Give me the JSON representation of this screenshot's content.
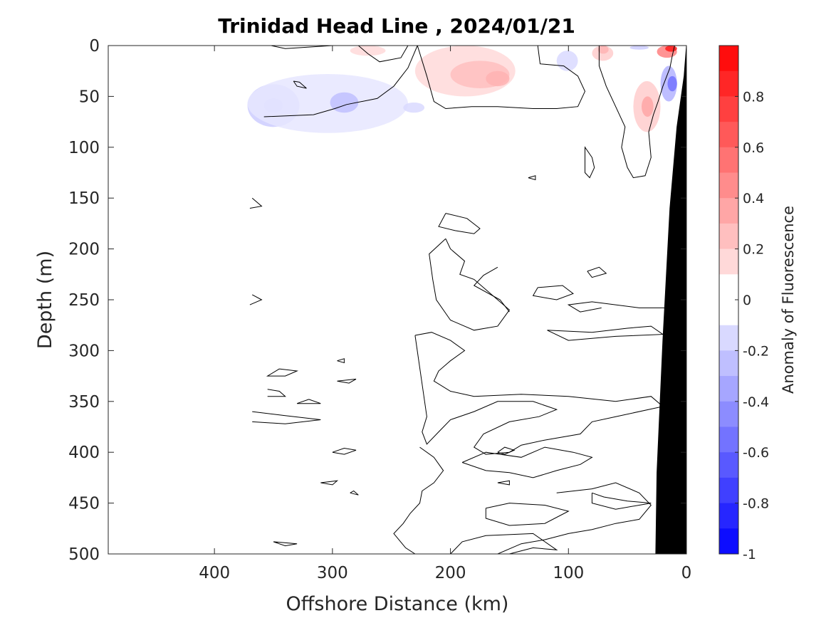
{
  "chart_data": {
    "type": "heatmap",
    "title": "Trinidad Head Line , 2024/01/21",
    "xlabel": "Offshore Distance (km)",
    "ylabel": "Depth (m)",
    "xlim": [
      490,
      0
    ],
    "ylim": [
      0,
      500
    ],
    "x_reversed": true,
    "y_reversed": true,
    "x_ticks": [
      400,
      300,
      200,
      100,
      0
    ],
    "x_tick_labels": [
      "400",
      "300",
      "200",
      "100",
      "0"
    ],
    "y_ticks": [
      0,
      50,
      100,
      150,
      200,
      250,
      300,
      350,
      400,
      450,
      500
    ],
    "y_tick_labels": [
      "0",
      "50",
      "100",
      "150",
      "200",
      "250",
      "300",
      "350",
      "400",
      "450",
      "500"
    ],
    "colorbar": {
      "label": "Anomaly of Fluorescence",
      "min": -1,
      "max": 1,
      "step": 0.1,
      "ticks": [
        0.8,
        0.6,
        0.4,
        0.2,
        0,
        -0.2,
        -0.4,
        -0.6,
        -0.8,
        -1
      ],
      "tick_labels": [
        "0.8",
        "0.6",
        "0.4",
        "0.2",
        "0",
        "-0.2",
        "-0.4",
        "-0.6",
        "-0.8",
        "-1"
      ],
      "color_min": "#0000ff",
      "color_zero": "#ffffff",
      "color_max": "#ff0000"
    },
    "data_extent": {
      "x_min_km": 0,
      "x_max_km": 370,
      "max_depth_offshore_m": 85,
      "note_free": true
    },
    "anomaly_regions": [
      {
        "dist": [
          358,
          342
        ],
        "depth": [
          52,
          66
        ],
        "value": -0.4
      },
      {
        "dist": [
          372,
          328
        ],
        "depth": [
          38,
          80
        ],
        "value": -0.2
      },
      {
        "dist": [
          372,
          236
        ],
        "depth": [
          28,
          86
        ],
        "value": -0.1
      },
      {
        "dist": [
          302,
          278
        ],
        "depth": [
          46,
          66
        ],
        "value": -0.25
      },
      {
        "dist": [
          240,
          222
        ],
        "depth": [
          56,
          66
        ],
        "value": -0.15
      },
      {
        "dist": [
          285,
          255
        ],
        "depth": [
          0,
          10
        ],
        "value": 0.15
      },
      {
        "dist": [
          230,
          145
        ],
        "depth": [
          0,
          50
        ],
        "value": 0.15
      },
      {
        "dist": [
          200,
          150
        ],
        "depth": [
          15,
          42
        ],
        "value": 0.25
      },
      {
        "dist": [
          170,
          150
        ],
        "depth": [
          25,
          40
        ],
        "value": 0.3
      },
      {
        "dist": [
          110,
          92
        ],
        "depth": [
          5,
          25
        ],
        "value": -0.15
      },
      {
        "dist": [
          80,
          62
        ],
        "depth": [
          0,
          15
        ],
        "value": 0.2
      },
      {
        "dist": [
          75,
          66
        ],
        "depth": [
          0,
          8
        ],
        "value": 0.3
      },
      {
        "dist": [
          48,
          32
        ],
        "depth": [
          0,
          4
        ],
        "value": -0.2
      },
      {
        "dist": [
          45,
          22
        ],
        "depth": [
          35,
          85
        ],
        "value": 0.2
      },
      {
        "dist": [
          38,
          28
        ],
        "depth": [
          50,
          70
        ],
        "value": 0.35
      },
      {
        "dist": [
          25,
          8
        ],
        "depth": [
          0,
          12
        ],
        "value": 0.5
      },
      {
        "dist": [
          18,
          8
        ],
        "depth": [
          0,
          6
        ],
        "value": 0.9
      },
      {
        "dist": [
          22,
          8
        ],
        "depth": [
          20,
          55
        ],
        "value": -0.3
      },
      {
        "dist": [
          16,
          8
        ],
        "depth": [
          30,
          45
        ],
        "value": -0.55
      }
    ],
    "bathymetry": [
      {
        "dist": 0,
        "depth": 0
      },
      {
        "dist": 2,
        "depth": 30
      },
      {
        "dist": 8,
        "depth": 80
      },
      {
        "dist": 14,
        "depth": 160
      },
      {
        "dist": 20,
        "depth": 290
      },
      {
        "dist": 25,
        "depth": 420
      },
      {
        "dist": 26,
        "depth": 500
      }
    ],
    "zero_contours": [
      [
        [
          300,
          0
        ],
        [
          340,
          3
        ],
        [
          352,
          0
        ]
      ],
      [
        [
          236,
          0
        ],
        [
          242,
          12
        ],
        [
          260,
          16
        ],
        [
          270,
          8
        ],
        [
          278,
          0
        ]
      ],
      [
        [
          228,
          0
        ],
        [
          236,
          22
        ],
        [
          248,
          40
        ],
        [
          262,
          52
        ],
        [
          288,
          58
        ],
        [
          298,
          62
        ],
        [
          316,
          68
        ],
        [
          358,
          70
        ]
      ],
      [
        [
          228,
          0
        ],
        [
          220,
          30
        ],
        [
          214,
          55
        ],
        [
          204,
          62
        ],
        [
          182,
          60
        ],
        [
          160,
          60
        ],
        [
          130,
          62
        ],
        [
          110,
          62
        ],
        [
          92,
          60
        ],
        [
          86,
          45
        ],
        [
          92,
          30
        ],
        [
          104,
          20
        ],
        [
          124,
          18
        ],
        [
          126,
          0
        ]
      ],
      [
        [
          74,
          0
        ],
        [
          74,
          20
        ],
        [
          68,
          40
        ],
        [
          60,
          60
        ],
        [
          52,
          80
        ],
        [
          55,
          100
        ],
        [
          50,
          120
        ],
        [
          45,
          130
        ],
        [
          35,
          128
        ],
        [
          30,
          110
        ],
        [
          32,
          85
        ],
        [
          28,
          68
        ],
        [
          24,
          55
        ],
        [
          20,
          40
        ],
        [
          14,
          22
        ],
        [
          12,
          10
        ],
        [
          10,
          0
        ]
      ],
      [
        [
          80,
          110
        ],
        [
          86,
          100
        ],
        [
          86,
          125
        ],
        [
          82,
          130
        ],
        [
          78,
          120
        ],
        [
          80,
          110
        ]
      ],
      [
        [
          333,
          35
        ],
        [
          330,
          40
        ],
        [
          322,
          42
        ],
        [
          328,
          36
        ],
        [
          333,
          35
        ]
      ],
      [
        [
          368,
          150
        ],
        [
          360,
          158
        ],
        [
          370,
          160
        ]
      ],
      [
        [
          368,
          245
        ],
        [
          360,
          250
        ],
        [
          370,
          255
        ]
      ],
      [
        [
          204,
          165
        ],
        [
          186,
          170
        ],
        [
          175,
          180
        ],
        [
          180,
          185
        ],
        [
          196,
          182
        ],
        [
          210,
          178
        ],
        [
          204,
          165
        ]
      ],
      [
        [
          204,
          190
        ],
        [
          218,
          205
        ],
        [
          215,
          230
        ],
        [
          212,
          250
        ],
        [
          200,
          270
        ],
        [
          180,
          280
        ],
        [
          160,
          276
        ],
        [
          150,
          260
        ],
        [
          170,
          240
        ],
        [
          180,
          230
        ],
        [
          192,
          225
        ],
        [
          188,
          212
        ],
        [
          200,
          200
        ],
        [
          204,
          190
        ]
      ],
      [
        [
          150,
          262
        ],
        [
          158,
          250
        ],
        [
          180,
          236
        ],
        [
          172,
          226
        ],
        [
          160,
          218
        ]
      ],
      [
        [
          126,
          238
        ],
        [
          105,
          236
        ],
        [
          96,
          244
        ],
        [
          110,
          250
        ],
        [
          130,
          246
        ],
        [
          126,
          238
        ]
      ],
      [
        [
          84,
          222
        ],
        [
          74,
          218
        ],
        [
          68,
          224
        ],
        [
          80,
          228
        ],
        [
          84,
          222
        ]
      ],
      [
        [
          72,
          258
        ],
        [
          90,
          262
        ],
        [
          100,
          255
        ],
        [
          80,
          252
        ],
        [
          40,
          258
        ],
        [
          2,
          258
        ]
      ],
      [
        [
          118,
          280
        ],
        [
          80,
          282
        ],
        [
          50,
          278
        ],
        [
          30,
          276
        ],
        [
          20,
          284
        ],
        [
          60,
          286
        ],
        [
          100,
          290
        ],
        [
          118,
          280
        ]
      ],
      [
        [
          230,
          285
        ],
        [
          216,
          282
        ],
        [
          200,
          290
        ],
        [
          188,
          300
        ],
        [
          200,
          310
        ],
        [
          210,
          320
        ],
        [
          214,
          330
        ],
        [
          200,
          340
        ],
        [
          180,
          345
        ],
        [
          140,
          343
        ],
        [
          100,
          345
        ],
        [
          60,
          350
        ],
        [
          30,
          345
        ],
        [
          20,
          355
        ],
        [
          60,
          365
        ],
        [
          80,
          370
        ],
        [
          90,
          382
        ],
        [
          120,
          388
        ],
        [
          140,
          393
        ],
        [
          150,
          400
        ],
        [
          170,
          402
        ],
        [
          180,
          395
        ],
        [
          172,
          382
        ],
        [
          150,
          370
        ],
        [
          125,
          365
        ],
        [
          110,
          358
        ],
        [
          130,
          350
        ],
        [
          160,
          350
        ],
        [
          180,
          360
        ],
        [
          200,
          368
        ],
        [
          210,
          380
        ],
        [
          220,
          392
        ],
        [
          224,
          380
        ],
        [
          220,
          365
        ],
        [
          230,
          285
        ]
      ],
      [
        [
          226,
          395
        ],
        [
          214,
          405
        ],
        [
          206,
          418
        ],
        [
          214,
          430
        ],
        [
          224,
          438
        ],
        [
          226,
          450
        ],
        [
          234,
          460
        ],
        [
          240,
          470
        ],
        [
          248,
          480
        ],
        [
          238,
          494
        ],
        [
          230,
          500
        ]
      ],
      [
        [
          190,
          410
        ],
        [
          170,
          418
        ],
        [
          150,
          420
        ],
        [
          130,
          425
        ],
        [
          110,
          418
        ],
        [
          90,
          412
        ],
        [
          80,
          405
        ],
        [
          96,
          400
        ],
        [
          120,
          395
        ],
        [
          140,
          405
        ],
        [
          170,
          400
        ],
        [
          190,
          410
        ]
      ],
      [
        [
          110,
          440
        ],
        [
          80,
          436
        ],
        [
          60,
          430
        ],
        [
          40,
          440
        ],
        [
          30,
          452
        ],
        [
          40,
          466
        ],
        [
          60,
          470
        ],
        [
          80,
          476
        ],
        [
          100,
          480
        ],
        [
          120,
          486
        ],
        [
          140,
          490
        ],
        [
          160,
          500
        ]
      ],
      [
        [
          170,
          455
        ],
        [
          150,
          450
        ],
        [
          120,
          452
        ],
        [
          100,
          458
        ],
        [
          120,
          470
        ],
        [
          150,
          472
        ],
        [
          170,
          465
        ],
        [
          170,
          455
        ]
      ],
      [
        [
          80,
          440
        ],
        [
          70,
          444
        ],
        [
          50,
          448
        ],
        [
          30,
          450
        ],
        [
          60,
          456
        ],
        [
          80,
          450
        ],
        [
          80,
          440
        ]
      ],
      [
        [
          170,
          520
        ],
        [
          150,
          500
        ],
        [
          130,
          494
        ],
        [
          110,
          496
        ],
        [
          130,
          480
        ],
        [
          170,
          482
        ],
        [
          190,
          488
        ],
        [
          200,
          500
        ]
      ],
      [
        [
          160,
          400
        ],
        [
          154,
          402
        ],
        [
          146,
          398
        ],
        [
          154,
          395
        ],
        [
          160,
          400
        ]
      ],
      [
        [
          300,
          400
        ],
        [
          290,
          402
        ],
        [
          280,
          398
        ],
        [
          290,
          396
        ],
        [
          300,
          400
        ]
      ],
      [
        [
          345,
          318
        ],
        [
          330,
          320
        ],
        [
          340,
          325
        ],
        [
          355,
          325
        ],
        [
          345,
          318
        ]
      ],
      [
        [
          355,
          338
        ],
        [
          345,
          340
        ],
        [
          340,
          345
        ],
        [
          355,
          345
        ]
      ],
      [
        [
          320,
          348
        ],
        [
          310,
          352
        ],
        [
          330,
          352
        ],
        [
          320,
          348
        ]
      ],
      [
        [
          368,
          360
        ],
        [
          340,
          364
        ],
        [
          310,
          368
        ],
        [
          340,
          372
        ],
        [
          368,
          370
        ]
      ],
      [
        [
          296,
          310
        ],
        [
          290,
          312
        ],
        [
          290,
          308
        ],
        [
          296,
          310
        ]
      ],
      [
        [
          296,
          330
        ],
        [
          286,
          332
        ],
        [
          280,
          328
        ],
        [
          296,
          330
        ]
      ],
      [
        [
          310,
          430
        ],
        [
          300,
          432
        ],
        [
          296,
          428
        ],
        [
          310,
          430
        ]
      ],
      [
        [
          285,
          440
        ],
        [
          278,
          442
        ],
        [
          282,
          438
        ],
        [
          285,
          440
        ]
      ],
      [
        [
          350,
          488
        ],
        [
          340,
          492
        ],
        [
          330,
          490
        ],
        [
          350,
          488
        ]
      ],
      [
        [
          134,
          130
        ],
        [
          128,
          132
        ],
        [
          128,
          128
        ],
        [
          134,
          130
        ]
      ],
      [
        [
          160,
          430
        ],
        [
          150,
          432
        ],
        [
          150,
          428
        ],
        [
          160,
          430
        ]
      ]
    ]
  }
}
